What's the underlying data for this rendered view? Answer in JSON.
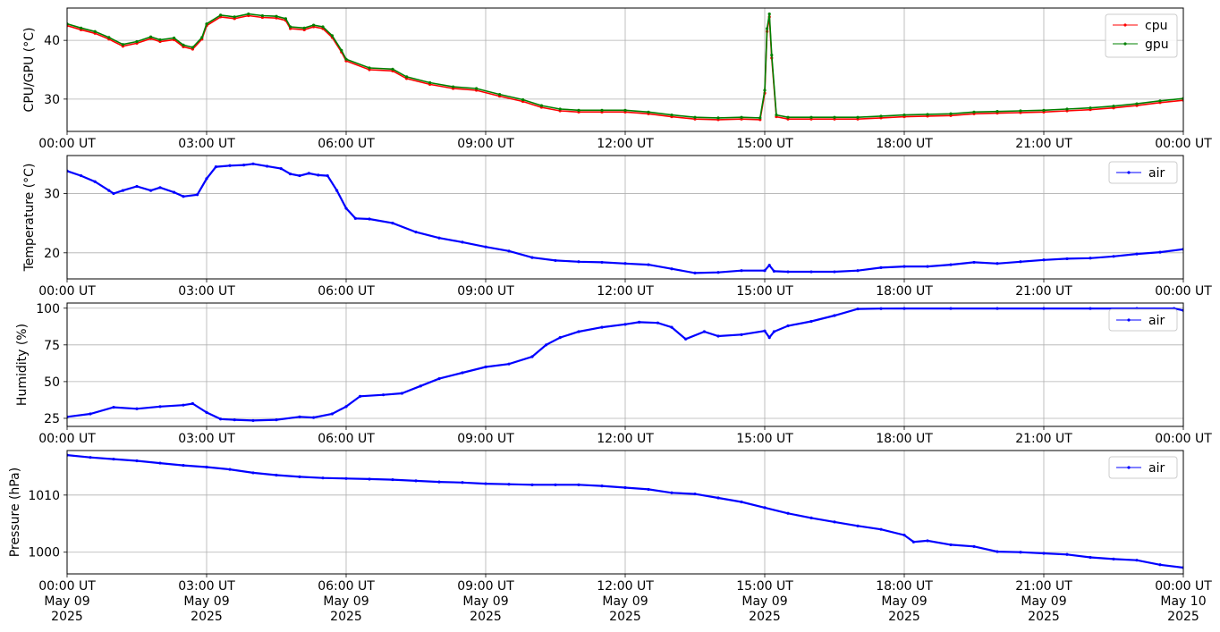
{
  "x_ticks": [
    "00:00 UT",
    "03:00 UT",
    "06:00 UT",
    "09:00 UT",
    "12:00 UT",
    "15:00 UT",
    "18:00 UT",
    "21:00 UT",
    "00:00 UT"
  ],
  "x_date_labels": [
    [
      "May 09",
      "2025"
    ],
    [
      "May 09",
      "2025"
    ],
    [
      "May 09",
      "2025"
    ],
    [
      "May 09",
      "2025"
    ],
    [
      "May 09",
      "2025"
    ],
    [
      "May 09",
      "2025"
    ],
    [
      "May 09",
      "2025"
    ],
    [
      "May 09",
      "2025"
    ],
    [
      "May 10",
      "2025"
    ]
  ],
  "colors": {
    "cpu": "#ff0000",
    "gpu": "#008000",
    "air": "#0000ff",
    "grid": "#b0b0b0"
  },
  "chart_data": [
    {
      "type": "line",
      "ylabel": "CPU/GPU (°C)",
      "ylim": [
        24.5,
        45.5
      ],
      "yticks": [
        30,
        40
      ],
      "xlim_hours": [
        0,
        24
      ],
      "grid": true,
      "legend": "top-right",
      "series": [
        {
          "name": "cpu",
          "color": "#ff0000",
          "x_hours": [
            0,
            0.3,
            0.6,
            0.9,
            1.2,
            1.5,
            1.8,
            2.0,
            2.3,
            2.5,
            2.7,
            2.9,
            3.0,
            3.3,
            3.6,
            3.9,
            4.2,
            4.5,
            4.7,
            4.8,
            5.1,
            5.3,
            5.5,
            5.7,
            5.9,
            6.0,
            6.5,
            7.0,
            7.3,
            7.8,
            8.3,
            8.8,
            9.3,
            9.8,
            10.2,
            10.6,
            11.0,
            11.5,
            12.0,
            12.5,
            13.0,
            13.5,
            14.0,
            14.5,
            14.9,
            15.0,
            15.05,
            15.1,
            15.15,
            15.25,
            15.5,
            16.0,
            16.5,
            17.0,
            17.5,
            18.0,
            18.5,
            19.0,
            19.5,
            20.0,
            20.5,
            21.0,
            21.5,
            22.0,
            22.5,
            23.0,
            23.5,
            24.0
          ],
          "values": [
            42.5,
            41.8,
            41.2,
            40.2,
            39.0,
            39.5,
            40.3,
            39.8,
            40.1,
            38.9,
            38.5,
            40.2,
            42.5,
            44.0,
            43.7,
            44.2,
            43.9,
            43.8,
            43.4,
            42.0,
            41.8,
            42.3,
            42.0,
            40.5,
            38.0,
            36.5,
            35.0,
            34.8,
            33.5,
            32.5,
            31.8,
            31.5,
            30.5,
            29.6,
            28.6,
            28.0,
            27.8,
            27.8,
            27.8,
            27.5,
            27.0,
            26.6,
            26.5,
            26.6,
            26.5,
            31.0,
            41.5,
            44.0,
            37.0,
            27.0,
            26.6,
            26.6,
            26.6,
            26.6,
            26.8,
            27.0,
            27.1,
            27.2,
            27.5,
            27.6,
            27.7,
            27.8,
            28.0,
            28.2,
            28.5,
            28.9,
            29.4,
            29.8
          ]
        },
        {
          "name": "gpu",
          "color": "#008000",
          "x_hours": [
            0,
            0.3,
            0.6,
            0.9,
            1.2,
            1.5,
            1.8,
            2.0,
            2.3,
            2.5,
            2.7,
            2.9,
            3.0,
            3.3,
            3.6,
            3.9,
            4.2,
            4.5,
            4.7,
            4.8,
            5.1,
            5.3,
            5.5,
            5.7,
            5.9,
            6.0,
            6.5,
            7.0,
            7.3,
            7.8,
            8.3,
            8.8,
            9.3,
            9.8,
            10.2,
            10.6,
            11.0,
            11.5,
            12.0,
            12.5,
            13.0,
            13.5,
            14.0,
            14.5,
            14.9,
            15.0,
            15.05,
            15.1,
            15.15,
            15.25,
            15.5,
            16.0,
            16.5,
            17.0,
            17.5,
            18.0,
            18.5,
            19.0,
            19.5,
            20.0,
            20.5,
            21.0,
            21.5,
            22.0,
            22.5,
            23.0,
            23.5,
            24.0
          ],
          "values": [
            42.8,
            42.1,
            41.5,
            40.5,
            39.3,
            39.8,
            40.6,
            40.1,
            40.4,
            39.2,
            38.8,
            40.5,
            42.8,
            44.3,
            44.0,
            44.5,
            44.2,
            44.1,
            43.7,
            42.3,
            42.1,
            42.6,
            42.3,
            40.8,
            38.3,
            36.8,
            35.3,
            35.1,
            33.8,
            32.8,
            32.1,
            31.8,
            30.8,
            29.9,
            28.9,
            28.3,
            28.1,
            28.1,
            28.1,
            27.8,
            27.3,
            26.9,
            26.8,
            26.9,
            26.8,
            31.5,
            42.0,
            44.5,
            37.5,
            27.3,
            26.9,
            26.9,
            26.9,
            26.9,
            27.1,
            27.3,
            27.4,
            27.5,
            27.8,
            27.9,
            28.0,
            28.1,
            28.3,
            28.5,
            28.8,
            29.2,
            29.7,
            30.1
          ]
        }
      ]
    },
    {
      "type": "line",
      "ylabel": "Temperature (°C)",
      "ylim": [
        15.6,
        36.4
      ],
      "yticks": [
        20,
        30
      ],
      "xlim_hours": [
        0,
        24
      ],
      "grid": true,
      "legend": "top-right",
      "series": [
        {
          "name": "air",
          "color": "#0000ff",
          "x_hours": [
            0,
            0.3,
            0.6,
            0.9,
            1.0,
            1.2,
            1.5,
            1.8,
            2.0,
            2.3,
            2.5,
            2.8,
            3.0,
            3.2,
            3.5,
            3.8,
            4.0,
            4.3,
            4.6,
            4.8,
            5.0,
            5.2,
            5.4,
            5.6,
            5.8,
            6.0,
            6.2,
            6.5,
            7.0,
            7.5,
            8.0,
            8.5,
            9.0,
            9.5,
            10.0,
            10.5,
            11.0,
            11.5,
            12.0,
            12.5,
            13.0,
            13.5,
            14.0,
            14.5,
            15.0,
            15.1,
            15.2,
            15.5,
            16.0,
            16.5,
            17.0,
            17.5,
            18.0,
            18.5,
            19.0,
            19.5,
            20.0,
            20.5,
            21.0,
            21.5,
            22.0,
            22.5,
            23.0,
            23.5,
            24.0
          ],
          "values": [
            33.8,
            33.0,
            32.0,
            30.5,
            30.0,
            30.5,
            31.2,
            30.5,
            31.0,
            30.2,
            29.5,
            29.8,
            32.5,
            34.5,
            34.7,
            34.8,
            35.0,
            34.6,
            34.2,
            33.3,
            33.0,
            33.4,
            33.1,
            33.0,
            30.5,
            27.5,
            25.8,
            25.7,
            25.0,
            23.5,
            22.5,
            21.8,
            21.0,
            20.3,
            19.2,
            18.7,
            18.5,
            18.4,
            18.2,
            18.0,
            17.3,
            16.6,
            16.7,
            17.0,
            17.0,
            17.9,
            16.9,
            16.8,
            16.8,
            16.8,
            17.0,
            17.5,
            17.7,
            17.7,
            18.0,
            18.4,
            18.2,
            18.5,
            18.8,
            19.0,
            19.1,
            19.4,
            19.8,
            20.1,
            20.6
          ]
        }
      ]
    },
    {
      "type": "line",
      "ylabel": "Humidity (%)",
      "ylim": [
        19.5,
        103.5
      ],
      "yticks": [
        25,
        50,
        75,
        100
      ],
      "xlim_hours": [
        0,
        24
      ],
      "grid": true,
      "legend": "top-right",
      "series": [
        {
          "name": "air",
          "color": "#0000ff",
          "x_hours": [
            0,
            0.5,
            1.0,
            1.5,
            2.0,
            2.5,
            2.7,
            3.0,
            3.3,
            3.6,
            4.0,
            4.5,
            5.0,
            5.3,
            5.7,
            6.0,
            6.3,
            6.8,
            7.2,
            7.6,
            8.0,
            8.5,
            9.0,
            9.5,
            10.0,
            10.3,
            10.6,
            11.0,
            11.5,
            12.0,
            12.3,
            12.7,
            13.0,
            13.3,
            13.7,
            14.0,
            14.5,
            15.0,
            15.1,
            15.2,
            15.5,
            16.0,
            16.5,
            17.0,
            17.5,
            18.0,
            19.0,
            20.0,
            21.0,
            22.0,
            23.0,
            23.8,
            24.0
          ],
          "values": [
            26.0,
            28.0,
            32.5,
            31.5,
            33.0,
            34.0,
            35.0,
            29.0,
            24.5,
            24.0,
            23.5,
            24.0,
            26.0,
            25.5,
            28.0,
            33.0,
            40.0,
            41.0,
            42.0,
            47.0,
            52.0,
            56.0,
            60.0,
            62.0,
            67.0,
            75.0,
            80.0,
            84.0,
            87.0,
            89.0,
            90.5,
            90.0,
            87.0,
            79.0,
            84.0,
            81.0,
            82.0,
            84.5,
            80.0,
            84.0,
            88.0,
            91.0,
            95.0,
            99.5,
            99.7,
            99.8,
            99.8,
            99.8,
            99.8,
            99.8,
            99.8,
            99.8,
            98.5
          ]
        }
      ]
    },
    {
      "type": "line",
      "ylabel": "Pressure (hPa)",
      "ylim": [
        996.2,
        1017.8
      ],
      "yticks": [
        1000,
        1010
      ],
      "xlim_hours": [
        0,
        24
      ],
      "grid": true,
      "legend": "top-right",
      "series": [
        {
          "name": "air",
          "color": "#0000ff",
          "x_hours": [
            0,
            0.5,
            1.0,
            1.5,
            2.0,
            2.5,
            3.0,
            3.5,
            4.0,
            4.5,
            5.0,
            5.5,
            6.0,
            6.5,
            7.0,
            7.5,
            8.0,
            8.5,
            9.0,
            9.5,
            10.0,
            10.5,
            11.0,
            11.5,
            12.0,
            12.5,
            13.0,
            13.5,
            14.0,
            14.5,
            15.0,
            15.5,
            16.0,
            16.5,
            17.0,
            17.5,
            18.0,
            18.2,
            18.5,
            19.0,
            19.5,
            20.0,
            20.5,
            21.0,
            21.5,
            22.0,
            22.5,
            23.0,
            23.5,
            24.0
          ],
          "values": [
            1017.0,
            1016.6,
            1016.3,
            1016.0,
            1015.6,
            1015.2,
            1014.9,
            1014.5,
            1013.9,
            1013.5,
            1013.2,
            1013.0,
            1012.9,
            1012.8,
            1012.7,
            1012.5,
            1012.3,
            1012.2,
            1012.0,
            1011.9,
            1011.8,
            1011.8,
            1011.8,
            1011.6,
            1011.3,
            1011.0,
            1010.4,
            1010.2,
            1009.5,
            1008.8,
            1007.8,
            1006.8,
            1006.0,
            1005.3,
            1004.6,
            1004.0,
            1003.0,
            1001.8,
            1002.0,
            1001.3,
            1001.0,
            1000.1,
            1000.0,
            999.8,
            999.6,
            999.1,
            998.8,
            998.6,
            997.8,
            997.3
          ]
        }
      ]
    }
  ]
}
